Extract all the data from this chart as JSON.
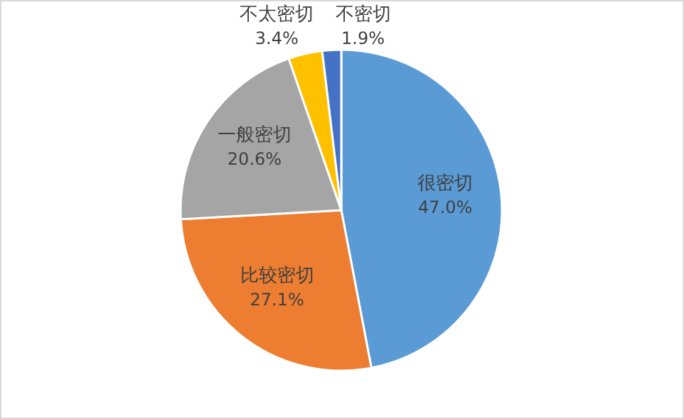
{
  "chart_data": {
    "type": "pie",
    "categories": [
      "很密切",
      "比较密切",
      "一般密切",
      "不太密切",
      "不密切"
    ],
    "values": [
      47.0,
      27.1,
      20.6,
      3.4,
      1.9
    ],
    "value_labels": [
      "47.0%",
      "27.1%",
      "20.6%",
      "3.4%",
      "1.9%"
    ],
    "colors": [
      "#5b9bd5",
      "#ed7d31",
      "#a5a5a5",
      "#ffc000",
      "#4472c4"
    ]
  }
}
